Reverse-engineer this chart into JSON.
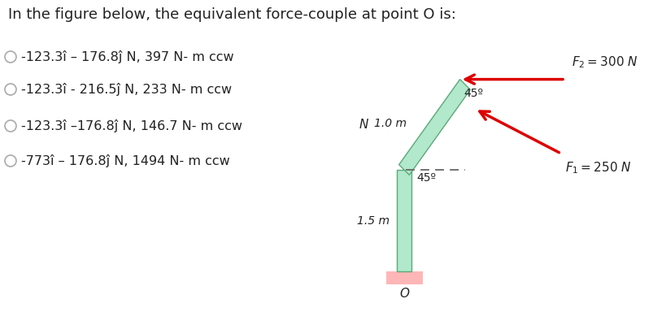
{
  "title": "In the figure below, the equivalent force-couple at point O is:",
  "options": [
    "-123.3î – 176.8ĵ N, 397 N- m ccw",
    "-123.3î - 216.5ĵ N, 233 N- m ccw",
    "-123.3î –176.8ĵ N, 146.7 N- m ccw",
    "-773î – 176.8ĵ N, 1494 N- m ccw"
  ],
  "bg_color": "#ffffff",
  "text_color": "#222222",
  "beam_color": "#b2e8cc",
  "beam_edge_color": "#5aaa78",
  "support_color": "#ffb6b6",
  "arrow_color": "#dd0000",
  "dashed_color": "#666666",
  "N_label": "N",
  "F2_label": "$F_2 = 300\\ N$",
  "F1_label": "$F_1 = 250\\ N$",
  "len1_label": "1.0 m",
  "len2_label": "1.5 m",
  "angle_label1": "45º",
  "angle_label2": "45º"
}
